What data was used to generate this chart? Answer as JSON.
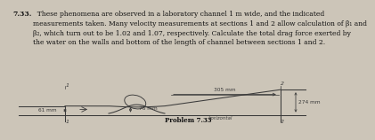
{
  "title_text": "7.33.",
  "problem_text": "  These phenomena are observed in a laboratory channel 1 m wide, and the indicated\nmeasurements taken. Many velocity measurements at sections 1 and 2 allow calculation of β₁ and\nβ₂, which turn out to be 1.02 and 1.07, respectively. Calculate the total drag force exerted by\nthe water on the walls and bottom of the length of channel between sections 1 and 2.",
  "caption": "Problem 7.33",
  "bg_color": "#ccc5b8",
  "text_color": "#111111",
  "dim_61": "61 mm",
  "dim_76": "76 mm",
  "dim_305": "305 mm",
  "dim_274": "274 mm",
  "label_horizontal": "horizontal",
  "sec1_top": "1",
  "sec2_top": "2",
  "sec1_bot": "1",
  "sec2_bot": "2",
  "arrow_color": "#333333",
  "line_color": "#3a3a3a"
}
